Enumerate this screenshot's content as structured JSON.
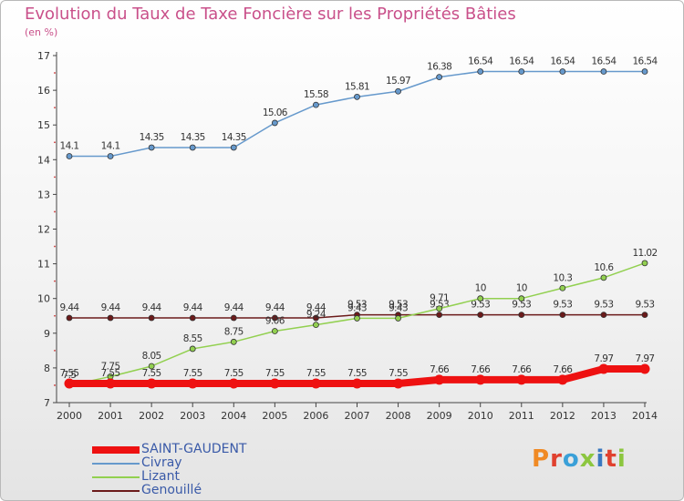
{
  "header": {
    "title": "Evolution du Taux de Taxe Foncière sur les Propriétés Bâties",
    "subtitle": "(en %)"
  },
  "logo": {
    "text": "Proxiti",
    "colors": [
      "#f08a24",
      "#e0412f",
      "#3aa0d8",
      "#8cc63f",
      "#3a78c0",
      "#e0412f",
      "#8cc63f"
    ]
  },
  "chart_data": {
    "type": "line",
    "title": "Evolution du Taux de Taxe Foncière sur les Propriétés Bâties",
    "ylabel": "(en %)",
    "xlabel": "",
    "ylim": [
      7,
      17
    ],
    "yticks": [
      "7",
      "8",
      "9",
      "10",
      "11",
      "12",
      "13",
      "14",
      "15",
      "16",
      "17"
    ],
    "categories": [
      "2000",
      "2001",
      "2002",
      "2003",
      "2004",
      "2005",
      "2006",
      "2007",
      "2008",
      "2009",
      "2010",
      "2011",
      "2012",
      "2013",
      "2014"
    ],
    "series": [
      {
        "name": "Genouillé",
        "color": "#6b1a1a",
        "values": [
          9.44,
          9.44,
          9.44,
          9.44,
          9.44,
          9.44,
          9.44,
          9.53,
          9.53,
          9.53,
          9.53,
          9.53,
          9.53,
          9.53,
          9.53
        ],
        "labels": [
          "9.44",
          "9.44",
          "9.44",
          "9.44",
          "9.44",
          "9.44",
          "9.44",
          "9.53",
          "9.53",
          "9.53",
          "9.53",
          "9.53",
          "9.53",
          "9.53",
          "9.53"
        ]
      },
      {
        "name": "Lizant",
        "color": "#92d050",
        "values": [
          7.5,
          7.75,
          8.05,
          8.55,
          8.75,
          9.06,
          9.24,
          9.43,
          9.43,
          9.71,
          10,
          10,
          10.3,
          10.6,
          11.02
        ],
        "labels": [
          "7.5",
          "7.75",
          "8.05",
          "8.55",
          "8.75",
          "9.06",
          "9.24",
          "9.43",
          "9.43",
          "9.71",
          "10",
          "10",
          "10.3",
          "10.6",
          "11.02"
        ]
      },
      {
        "name": "Civray",
        "color": "#6699cc",
        "values": [
          14.1,
          14.1,
          14.35,
          14.35,
          14.35,
          15.06,
          15.58,
          15.81,
          15.97,
          16.38,
          16.54,
          16.54,
          16.54,
          16.54,
          16.54
        ],
        "labels": [
          "14.1",
          "14.1",
          "14.35",
          "14.35",
          "14.35",
          "15.06",
          "15.58",
          "15.81",
          "15.97",
          "16.38",
          "16.54",
          "16.54",
          "16.54",
          "16.54",
          "16.54"
        ]
      },
      {
        "name": "SAINT-GAUDENT",
        "color": "#ee1111",
        "values": [
          7.55,
          7.55,
          7.55,
          7.55,
          7.55,
          7.55,
          7.55,
          7.55,
          7.55,
          7.66,
          7.66,
          7.66,
          7.66,
          7.97,
          7.97
        ],
        "labels": [
          "7.55",
          "7.55",
          "7.55",
          "7.55",
          "7.55",
          "7.55",
          "7.55",
          "7.55",
          "7.55",
          "7.66",
          "7.66",
          "7.66",
          "7.66",
          "7.97",
          "7.97"
        ]
      }
    ],
    "legend": [
      {
        "name": "SAINT-GAUDENT",
        "color": "#ee1111"
      },
      {
        "name": "Civray",
        "color": "#6699cc"
      },
      {
        "name": "Lizant",
        "color": "#92d050"
      },
      {
        "name": "Genouillé",
        "color": "#6b1a1a"
      }
    ],
    "legend_position": "bottom-left",
    "grid": false
  }
}
